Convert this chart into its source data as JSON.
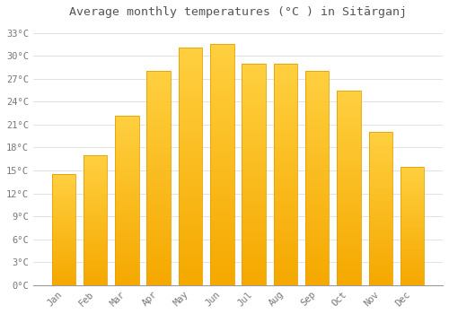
{
  "title": "Average monthly temperatures (°C ) in Sitārganj",
  "months": [
    "Jan",
    "Feb",
    "Mar",
    "Apr",
    "May",
    "Jun",
    "Jul",
    "Aug",
    "Sep",
    "Oct",
    "Nov",
    "Dec"
  ],
  "values": [
    14.5,
    17.0,
    22.2,
    28.0,
    31.1,
    31.5,
    29.0,
    29.0,
    28.0,
    25.5,
    20.0,
    15.5
  ],
  "bar_color_top": "#FFC200",
  "bar_color_bottom": "#F5A800",
  "bar_edge_color": "#E8A000",
  "background_color": "#FFFFFF",
  "grid_color": "#DDDDDD",
  "tick_label_color": "#777777",
  "title_color": "#555555",
  "ylim": [
    0,
    34
  ],
  "ytick_step": 3,
  "title_fontsize": 9.5,
  "tick_fontsize": 7.5
}
